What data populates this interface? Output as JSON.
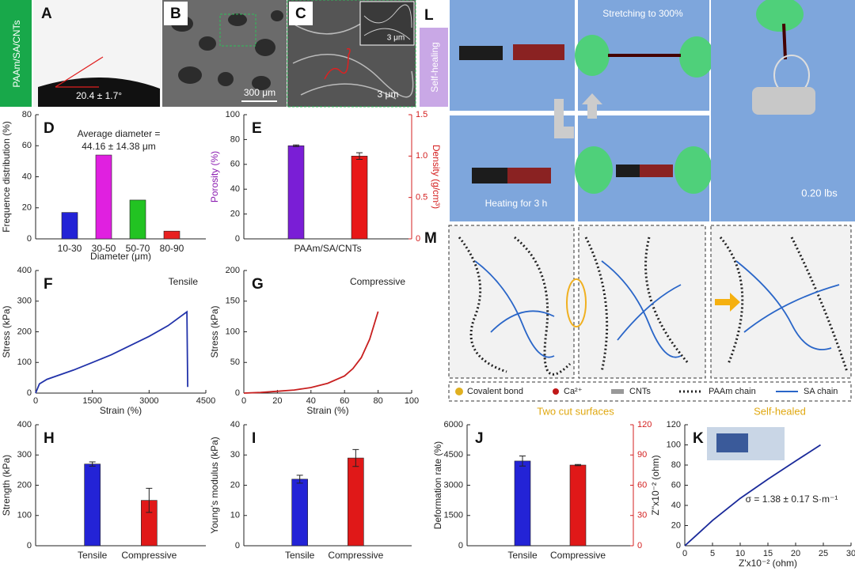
{
  "sample_label": "PAAm/SA/CNTs",
  "panels": {
    "A": {
      "label": "A",
      "caption": "20.4 ± 1.7°"
    },
    "B": {
      "label": "B",
      "scale": "300 μm"
    },
    "C": {
      "label": "C",
      "scale": "3 μm",
      "inset_scale": "3 μm"
    },
    "L": {
      "label": "L",
      "side": "Self-healing",
      "stretch": "Stretching to  300%",
      "heat": "Heating for 3 h",
      "load": "0.20 lbs"
    },
    "M": {
      "label": "M",
      "legend": [
        "Covalent bond",
        "Ca²⁺",
        "CNTs",
        "PAAm chain",
        "SA chain"
      ],
      "captions": [
        "Two cut surfaces",
        "Self-healed"
      ]
    }
  },
  "chart_data": [
    {
      "type": "bar",
      "panel": "D",
      "annotation": [
        "Average diameter =",
        "44.16 ± 14.38 μm"
      ],
      "xlabel": "Diameter (μm)",
      "ylabel": "Frequence distribution (%)",
      "categories": [
        "10-30",
        "30-50",
        "50-70",
        "80-90"
      ],
      "series": [
        {
          "colors": [
            "#2323d6",
            "#e020e0",
            "#22c322",
            "#e82020"
          ],
          "values": [
            17,
            54,
            25,
            5
          ]
        }
      ],
      "ylim": [
        0,
        80
      ],
      "yticks": [
        0,
        20,
        40,
        60,
        80
      ]
    },
    {
      "type": "bar",
      "panel": "E",
      "ylabel": "Porosity (%)",
      "ylabel_color": "#8a1ab0",
      "y2label": "Density (g/cm³)",
      "y2_color": "#d42020",
      "categories": [
        "PAAm/SA/CNTs"
      ],
      "series": [
        {
          "color": "#7a1ed6",
          "values": [
            75
          ],
          "errors": [
            0.6
          ]
        },
        {
          "color": "#e81818",
          "values": [
            1.0
          ],
          "errors": [
            0.04
          ],
          "axis": "y2"
        }
      ],
      "ylim": [
        0,
        100
      ],
      "yticks": [
        0,
        20,
        40,
        60,
        80,
        100
      ],
      "y2lim": [
        0,
        1.5
      ],
      "y2ticks": [
        0,
        0.5,
        {
          "value": 1.0,
          "label": "1.0"
        },
        1.5
      ]
    },
    {
      "type": "line",
      "panel": "F",
      "annotation": [
        "Tensile"
      ],
      "xlabel": "Strain (%)",
      "ylabel": "Stress (kPa)",
      "color": "#2233aa",
      "x": [
        0,
        100,
        300,
        1000,
        1500,
        2000,
        2500,
        3000,
        3500,
        4000,
        4020
      ],
      "values": [
        0,
        30,
        45,
        75,
        100,
        125,
        155,
        185,
        220,
        265,
        20
      ],
      "xlim": [
        0,
        4500
      ],
      "xticks": [
        0,
        1500,
        3000,
        4500
      ],
      "ylim": [
        0,
        400
      ],
      "yticks": [
        0,
        100,
        200,
        300,
        400
      ]
    },
    {
      "type": "line",
      "panel": "G",
      "annotation": [
        "Compressive"
      ],
      "xlabel": "Strain (%)",
      "ylabel": "Stress (kPa)",
      "color": "#c82020",
      "x": [
        0,
        10,
        20,
        30,
        40,
        50,
        60,
        65,
        70,
        75,
        80
      ],
      "values": [
        0,
        1,
        3,
        5,
        9,
        16,
        28,
        40,
        58,
        88,
        133
      ],
      "xlim": [
        0,
        100
      ],
      "xticks": [
        0,
        20,
        40,
        60,
        80,
        100
      ],
      "ylim": [
        0,
        200
      ],
      "yticks": [
        0,
        50,
        100,
        150,
        200
      ]
    },
    {
      "type": "bar",
      "panel": "H",
      "ylabel": "Strength (kPa)",
      "categories": [
        "Tensile",
        "Compressive"
      ],
      "series": [
        {
          "colors": [
            "#2323d6",
            "#e01818"
          ],
          "values": [
            270,
            150
          ],
          "errors": [
            7,
            40
          ]
        }
      ],
      "ylim": [
        0,
        400
      ],
      "yticks": [
        0,
        100,
        200,
        300,
        400
      ]
    },
    {
      "type": "bar",
      "panel": "I",
      "ylabel": "Young's modulus (kPa)",
      "categories": [
        "Tensile",
        "Compressive"
      ],
      "series": [
        {
          "colors": [
            "#2323d6",
            "#e01818"
          ],
          "values": [
            22,
            29
          ],
          "errors": [
            1.3,
            2.8
          ]
        }
      ],
      "ylim": [
        0,
        40
      ],
      "yticks": [
        0,
        10,
        20,
        30,
        40
      ]
    },
    {
      "type": "bar",
      "panel": "J",
      "ylabel": "Deformation rate (%)",
      "y2_color": "#d42020",
      "categories": [
        "Tensile",
        "Compressive"
      ],
      "series": [
        {
          "color": "#2323d6",
          "values": [
            4200,
            null
          ],
          "errors": [
            250,
            null
          ]
        },
        {
          "color": "#e01818",
          "values": [
            null,
            80
          ],
          "errors": [
            null,
            0.6
          ],
          "axis": "y2"
        }
      ],
      "ylim": [
        0,
        6000
      ],
      "yticks": [
        0,
        1500,
        3000,
        4500,
        6000
      ],
      "y2lim": [
        0,
        120
      ],
      "y2ticks": [
        0,
        30,
        60,
        90,
        120
      ]
    },
    {
      "type": "line",
      "panel": "K",
      "annotation": [
        "σ = 1.38 ± 0.17 S·m⁻¹"
      ],
      "xlabel": "Z'x10⁻² (ohm)",
      "ylabel": "Z''x10⁻² (ohm)",
      "color": "#1a2a9a",
      "x": [
        0,
        2,
        5,
        10,
        15,
        20,
        24.5
      ],
      "values": [
        0,
        10,
        25,
        47,
        66,
        84,
        100
      ],
      "xlim": [
        0,
        30
      ],
      "xticks": [
        0,
        5,
        10,
        15,
        20,
        25,
        30
      ],
      "ylim": [
        0,
        120
      ],
      "yticks": [
        0,
        20,
        40,
        60,
        80,
        100,
        120
      ]
    }
  ]
}
